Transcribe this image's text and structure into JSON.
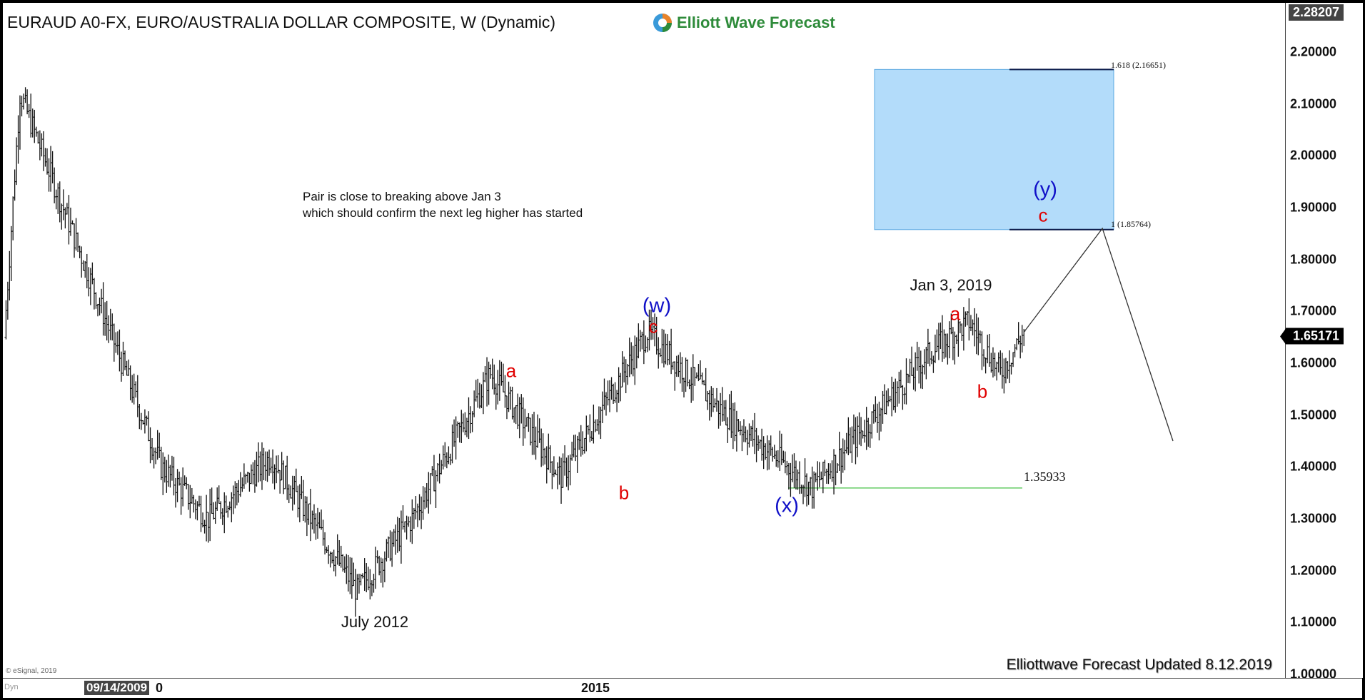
{
  "header": {
    "title": "EURAUD A0-FX, EURO/AUSTRALIA DOLLAR COMPOSITE, W (Dynamic)",
    "logo_text": "Elliott Wave Forecast"
  },
  "annotation_note": [
    "Pair is close to breaking above Jan 3",
    "which should confirm the next leg higher has started"
  ],
  "footer": {
    "credit": "Elliottwave Forecast  Updated 8.12.2019",
    "copyright": "© eSignal, 2019",
    "dyn_label": "Dyn"
  },
  "price_axis": {
    "top_value": "2.28207",
    "current_value": "1.65171",
    "ticks": [
      "2.20000",
      "2.10000",
      "2.00000",
      "1.90000",
      "1.80000",
      "1.70000",
      "1.60000",
      "1.50000",
      "1.40000",
      "1.30000",
      "1.20000",
      "1.10000",
      "1.00000"
    ]
  },
  "time_axis": {
    "selected_date": "09/14/2009",
    "partial_label": "0",
    "ticks": [
      "2015"
    ]
  },
  "wave_labels": [
    {
      "text": "a",
      "color": "red",
      "price": 1.585
    },
    {
      "text": "b",
      "color": "red",
      "price": 1.35
    },
    {
      "text": "(w)",
      "color": "blue",
      "price": 1.71
    },
    {
      "text": "c",
      "color": "red",
      "price": 1.67
    },
    {
      "text": "(x)",
      "color": "blue",
      "price": 1.325
    },
    {
      "text": "a",
      "color": "red",
      "price": 1.695
    },
    {
      "text": "b",
      "color": "red",
      "price": 1.545
    },
    {
      "text": "(y)",
      "color": "blue",
      "price": 1.935
    },
    {
      "text": "c",
      "color": "red",
      "price": 1.885
    },
    {
      "text": "July 2012",
      "color": "black",
      "price": 1.1
    },
    {
      "text": "Jan 3, 2019",
      "color": "black",
      "price": 1.75
    }
  ],
  "fib_levels": {
    "upper": "1.618 (2.16651)",
    "lower": "1 (1.85764)",
    "support": "1.35933"
  },
  "colors": {
    "bars": "#111111",
    "target_box": "#b3dcfa",
    "support_line": "#66cc66",
    "red_labels": "#e00000",
    "blue_labels": "#1010c8"
  },
  "chart_data": {
    "type": "ohlc",
    "title": "EURAUD A0-FX, EURO/AUSTRALIA DOLLAR COMPOSITE, W (Dynamic)",
    "ylim": [
      1.0,
      2.28207
    ],
    "swing_points": [
      {
        "date": "2008-10",
        "price": 1.65
      },
      {
        "date": "2008-12",
        "price": 2.12
      },
      {
        "date": "2009-03",
        "price": 2.0
      },
      {
        "date": "2010-06",
        "price": 1.4
      },
      {
        "date": "2010-12",
        "price": 1.3
      },
      {
        "date": "2011-08",
        "price": 1.42
      },
      {
        "date": "2012-07",
        "price": 1.16
      },
      {
        "date": "2013-02",
        "price": 1.3
      },
      {
        "date": "2013-12",
        "price": 1.58
      },
      {
        "date": "2014-09",
        "price": 1.38
      },
      {
        "date": "2015-08",
        "price": 1.66
      },
      {
        "date": "2016-06",
        "price": 1.5
      },
      {
        "date": "2017-05",
        "price": 1.36
      },
      {
        "date": "2018-08",
        "price": 1.62
      },
      {
        "date": "2019-01",
        "price": 1.68
      },
      {
        "date": "2019-05",
        "price": 1.58
      },
      {
        "date": "2019-08",
        "price": 1.66
      }
    ],
    "projection": [
      {
        "date": "2019-08",
        "price": 1.66
      },
      {
        "date": "2020-06",
        "price": 1.86
      },
      {
        "date": "2021-03",
        "price": 1.45
      }
    ],
    "target_zone": [
      1.85764,
      2.16651
    ],
    "support_level": 1.35933,
    "current_price": 1.65171
  }
}
